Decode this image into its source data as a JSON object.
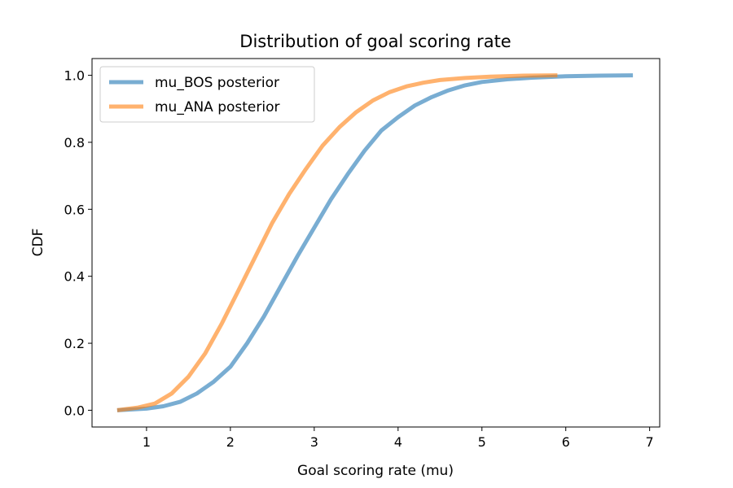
{
  "chart_data": {
    "type": "line",
    "title": "Distribution of goal scoring rate",
    "xlabel": "Goal scoring rate (mu)",
    "ylabel": "CDF",
    "xlim": [
      0.35,
      7.12
    ],
    "ylim": [
      -0.05,
      1.05
    ],
    "xticks": [
      1,
      2,
      3,
      4,
      5,
      6,
      7
    ],
    "yticks": [
      0.0,
      0.2,
      0.4,
      0.6,
      0.8,
      1.0
    ],
    "xtick_labels": [
      "1",
      "2",
      "3",
      "4",
      "5",
      "6",
      "7"
    ],
    "ytick_labels": [
      "0.0",
      "0.2",
      "0.4",
      "0.6",
      "0.8",
      "1.0"
    ],
    "grid": false,
    "legend_position": "top-left",
    "series": [
      {
        "name": "mu_BOS posterior",
        "color": "#1f77b4",
        "x": [
          0.65,
          1.0,
          1.2,
          1.4,
          1.6,
          1.8,
          2.0,
          2.2,
          2.4,
          2.6,
          2.8,
          3.0,
          3.2,
          3.4,
          3.6,
          3.8,
          4.0,
          4.2,
          4.4,
          4.6,
          4.8,
          5.0,
          5.3,
          5.6,
          6.0,
          6.4,
          6.8
        ],
        "y": [
          0.0,
          0.005,
          0.012,
          0.025,
          0.05,
          0.085,
          0.13,
          0.2,
          0.28,
          0.37,
          0.46,
          0.545,
          0.63,
          0.705,
          0.775,
          0.835,
          0.875,
          0.91,
          0.935,
          0.955,
          0.97,
          0.98,
          0.988,
          0.993,
          0.997,
          0.999,
          1.0
        ]
      },
      {
        "name": "mu_ANA posterior",
        "color": "#ff7f0e",
        "x": [
          0.65,
          0.9,
          1.1,
          1.3,
          1.5,
          1.7,
          1.9,
          2.1,
          2.3,
          2.5,
          2.7,
          2.9,
          3.1,
          3.3,
          3.5,
          3.7,
          3.9,
          4.1,
          4.3,
          4.5,
          4.8,
          5.1,
          5.5,
          5.9
        ],
        "y": [
          0.0,
          0.008,
          0.02,
          0.05,
          0.1,
          0.17,
          0.26,
          0.36,
          0.46,
          0.56,
          0.645,
          0.72,
          0.79,
          0.845,
          0.89,
          0.925,
          0.95,
          0.967,
          0.978,
          0.986,
          0.992,
          0.996,
          0.999,
          1.0
        ]
      }
    ]
  }
}
